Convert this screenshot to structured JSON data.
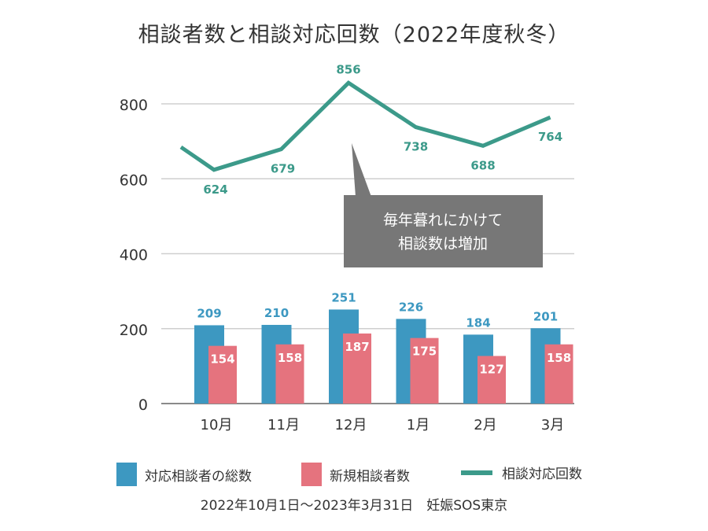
{
  "chart_data": {
    "type": "bar+line",
    "title": "相談者数と相談対応回数（2022年度秋冬）",
    "categories": [
      "10月",
      "11月",
      "12月",
      "1月",
      "2月",
      "3月"
    ],
    "series": [
      {
        "name": "対応相談者の総数",
        "type": "bar",
        "color": "#3d98c1",
        "values": [
          209,
          210,
          251,
          226,
          184,
          201
        ]
      },
      {
        "name": "新規相談者数",
        "type": "bar",
        "color": "#e5737e",
        "values": [
          154,
          158,
          187,
          175,
          127,
          158
        ]
      },
      {
        "name": "相談対応回数",
        "type": "line",
        "color": "#3c9a8a",
        "values": [
          624,
          679,
          856,
          738,
          688,
          764
        ]
      }
    ],
    "yticks": [
      0,
      200,
      400,
      600,
      800
    ],
    "ylim": [
      0,
      800
    ],
    "grid": true,
    "legend": "bottom",
    "annotation": {
      "lines": [
        "毎年暮れにかけて",
        "相談数は増加"
      ],
      "color": "#777777"
    }
  },
  "footer": "2022年10月1日～2023年3月31日　妊娠SOS東京"
}
